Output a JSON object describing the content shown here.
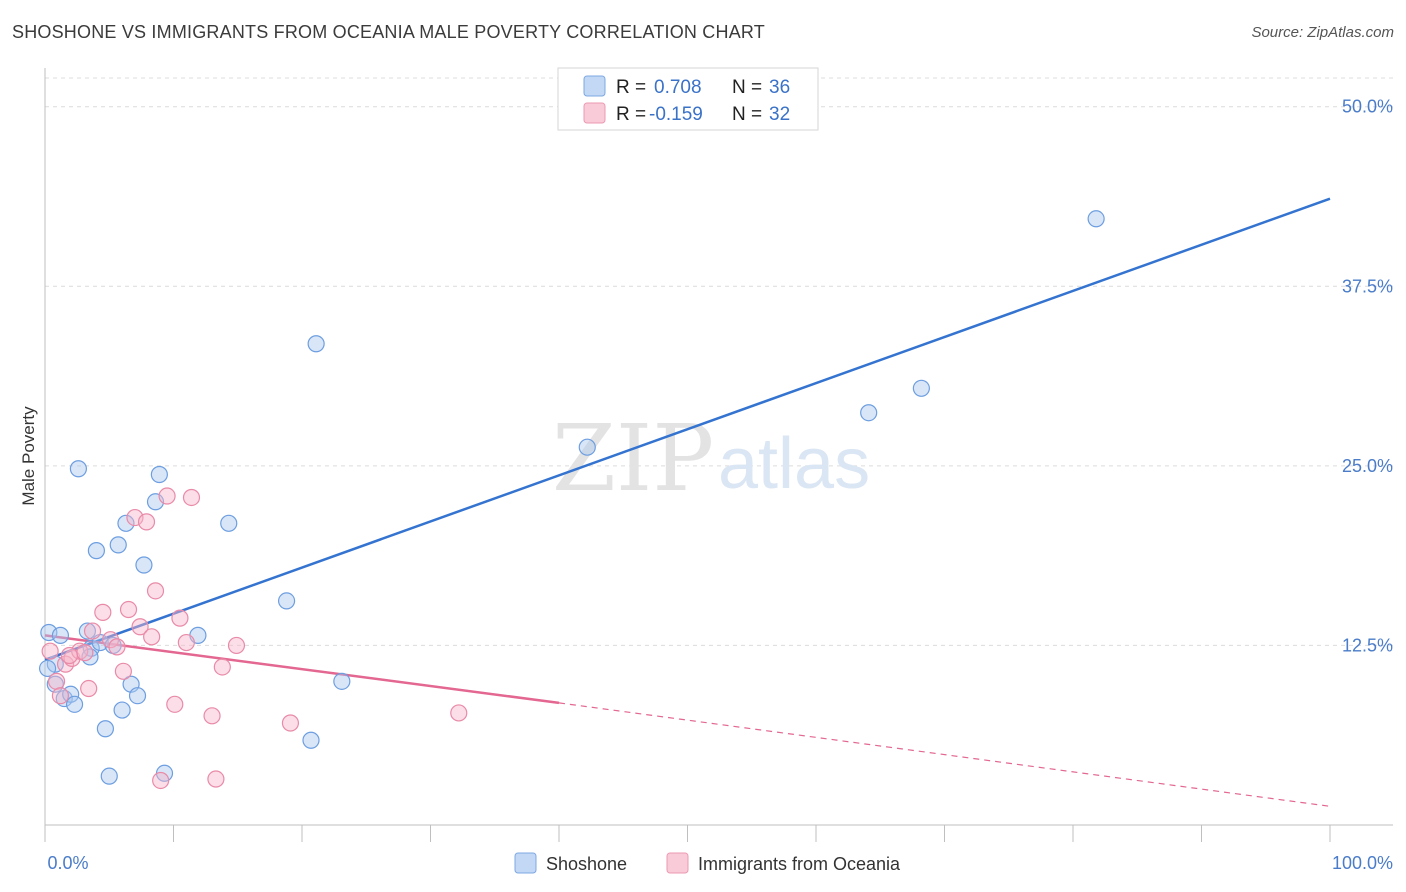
{
  "title": "SHOSHONE VS IMMIGRANTS FROM OCEANIA MALE POVERTY CORRELATION CHART",
  "source": "Source: ZipAtlas.com",
  "watermark": {
    "zip": "ZIP",
    "atlas": "atlas"
  },
  "legend": {
    "rows": [
      {
        "r_label": "R = ",
        "r_value": "0.708",
        "n_label": "N = ",
        "n_value": "36",
        "color": "#a8c8f0"
      },
      {
        "r_label": "R = ",
        "r_value": "-0.159",
        "n_label": "N = ",
        "n_value": "32",
        "color": "#f6b6c9"
      }
    ]
  },
  "chart_data": {
    "type": "scatter",
    "title": "SHOSHONE VS IMMIGRANTS FROM OCEANIA MALE POVERTY CORRELATION CHART",
    "xlabel": "",
    "ylabel": "Male Poverty",
    "xlim": [
      0,
      100
    ],
    "ylim": [
      0,
      52
    ],
    "x_tick_labels": [
      "0.0%",
      "100.0%"
    ],
    "y_ticks": [
      12.5,
      25.0,
      37.5,
      50.0
    ],
    "y_tick_labels": [
      "12.5%",
      "25.0%",
      "37.5%",
      "50.0%"
    ],
    "grid": true,
    "legend_position": "top-center",
    "series": [
      {
        "name": "Shoshone",
        "color": "#a8c8f0",
        "stroke": "#6d9ee0",
        "trend_color": "#3474d0",
        "trend": {
          "x": [
            0,
            100
          ],
          "y": [
            11.5,
            43.6
          ]
        },
        "points": [
          [
            0.3,
            13.4
          ],
          [
            1.2,
            13.2
          ],
          [
            0.8,
            11.2
          ],
          [
            0.8,
            9.8
          ],
          [
            1.5,
            8.8
          ],
          [
            2.0,
            9.1
          ],
          [
            2.3,
            8.4
          ],
          [
            2.6,
            24.8
          ],
          [
            3.3,
            13.5
          ],
          [
            3.6,
            12.3
          ],
          [
            3.5,
            11.7
          ],
          [
            4.0,
            19.1
          ],
          [
            4.3,
            12.7
          ],
          [
            4.7,
            6.7
          ],
          [
            5.0,
            3.4
          ],
          [
            5.3,
            12.5
          ],
          [
            5.7,
            19.5
          ],
          [
            6.0,
            8.0
          ],
          [
            6.3,
            21.0
          ],
          [
            6.7,
            9.8
          ],
          [
            7.2,
            9.0
          ],
          [
            7.7,
            18.1
          ],
          [
            8.6,
            22.5
          ],
          [
            8.9,
            24.4
          ],
          [
            9.3,
            3.6
          ],
          [
            11.9,
            13.2
          ],
          [
            14.3,
            21.0
          ],
          [
            18.8,
            15.6
          ],
          [
            20.7,
            5.9
          ],
          [
            21.1,
            33.5
          ],
          [
            23.1,
            10.0
          ],
          [
            42.2,
            26.3
          ],
          [
            64.1,
            28.7
          ],
          [
            68.2,
            30.4
          ],
          [
            81.8,
            42.2
          ],
          [
            0.2,
            10.9
          ]
        ]
      },
      {
        "name": "Immigrants from Oceania",
        "color": "#f6b6c9",
        "stroke": "#e98aa8",
        "trend_color": "#e36790",
        "trend_solid": {
          "x": [
            0,
            40
          ],
          "y": [
            13.2,
            8.5
          ]
        },
        "trend_dashed": {
          "x": [
            40,
            100
          ],
          "y": [
            8.5,
            1.3
          ]
        },
        "points": [
          [
            0.4,
            12.1
          ],
          [
            0.9,
            10.0
          ],
          [
            1.2,
            9.0
          ],
          [
            1.6,
            11.2
          ],
          [
            2.1,
            11.6
          ],
          [
            2.7,
            12.1
          ],
          [
            3.4,
            9.5
          ],
          [
            3.7,
            13.5
          ],
          [
            4.5,
            14.8
          ],
          [
            5.1,
            12.9
          ],
          [
            5.6,
            12.4
          ],
          [
            6.1,
            10.7
          ],
          [
            6.5,
            15.0
          ],
          [
            7.0,
            21.4
          ],
          [
            7.4,
            13.8
          ],
          [
            7.9,
            21.1
          ],
          [
            8.3,
            13.1
          ],
          [
            8.6,
            16.3
          ],
          [
            9.0,
            3.1
          ],
          [
            9.5,
            22.9
          ],
          [
            10.1,
            8.4
          ],
          [
            10.5,
            14.4
          ],
          [
            11.0,
            12.7
          ],
          [
            11.4,
            22.8
          ],
          [
            13.0,
            7.6
          ],
          [
            13.3,
            3.2
          ],
          [
            13.8,
            11.0
          ],
          [
            14.9,
            12.5
          ],
          [
            19.1,
            7.1
          ],
          [
            32.2,
            7.8
          ],
          [
            3.1,
            12.0
          ],
          [
            1.9,
            11.8
          ]
        ]
      }
    ]
  }
}
